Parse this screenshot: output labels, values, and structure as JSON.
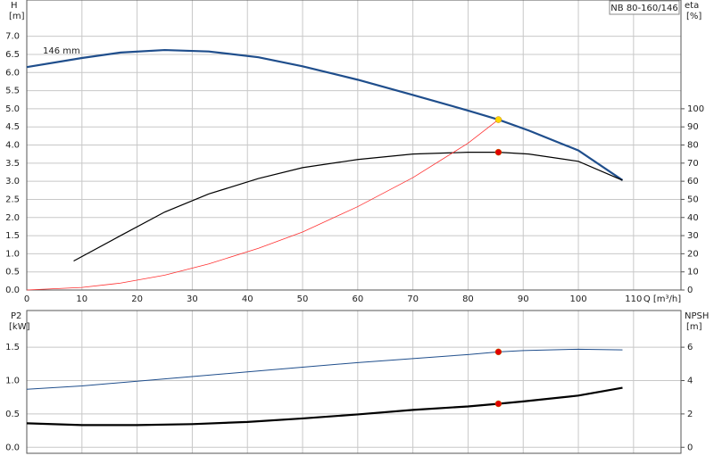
{
  "chart_data": [
    {
      "type": "line",
      "ylabel": "H",
      "yunit": "[m]",
      "y2label": "eta",
      "y2unit": "[%]",
      "xlabel": "Q [m³/h]",
      "title": "NB 80-160/146",
      "xlim": [
        0,
        118.6
      ],
      "xticks": [
        0,
        10,
        20,
        30,
        40,
        50,
        60,
        70,
        80,
        90,
        100,
        110
      ],
      "show_xtick_labels": true,
      "ylim": [
        0,
        8.0
      ],
      "yticks": [
        {
          "value": 0,
          "label": "0.0"
        },
        {
          "value": 0.5,
          "label": "0.5"
        },
        {
          "value": 1,
          "label": "1.0"
        },
        {
          "value": 1.5,
          "label": "1.5"
        },
        {
          "value": 2,
          "label": "2.0"
        },
        {
          "value": 2.5,
          "label": "2.5"
        },
        {
          "value": 3,
          "label": "3.0"
        },
        {
          "value": 3.5,
          "label": "3.5"
        },
        {
          "value": 4,
          "label": "4.0"
        },
        {
          "value": 4.5,
          "label": "4.5"
        },
        {
          "value": 5,
          "label": "5.0"
        },
        {
          "value": 5.5,
          "label": "5.5"
        },
        {
          "value": 6,
          "label": "6.0"
        },
        {
          "value": 6.5,
          "label": "6.5"
        },
        {
          "value": 7,
          "label": "7.0"
        }
      ],
      "y2lim": [
        0,
        160
      ],
      "y2ticks": [
        0,
        10,
        20,
        30,
        40,
        50,
        60,
        70,
        80,
        90,
        100
      ],
      "grid": true,
      "series": [
        {
          "name": "146 mm",
          "color": "#1f4e8c",
          "width": 2.2,
          "x": [
            0,
            10,
            17,
            25,
            33,
            42,
            50,
            60,
            70,
            80,
            85.5,
            91,
            100,
            108
          ],
          "values": [
            6.15,
            6.4,
            6.55,
            6.62,
            6.58,
            6.42,
            6.17,
            5.8,
            5.38,
            4.95,
            4.7,
            4.4,
            3.85,
            3.03
          ]
        },
        {
          "color": "#000000",
          "width": 1.2,
          "axis": "y2",
          "x": [
            8.5,
            17,
            25,
            33,
            42,
            50,
            60,
            70,
            80,
            85.5,
            91,
            100,
            108
          ],
          "values": [
            16,
            30,
            43,
            53,
            61.5,
            67.5,
            72,
            75,
            76,
            76,
            75,
            71,
            60.5
          ]
        },
        {
          "color": "#ff3030",
          "width": 0.8,
          "x": [
            0,
            10,
            17,
            25,
            33,
            42,
            50,
            60,
            70,
            80,
            85.5
          ],
          "values": [
            0,
            0.07,
            0.19,
            0.41,
            0.72,
            1.15,
            1.6,
            2.3,
            3.1,
            4.05,
            4.7
          ]
        }
      ],
      "markers": [
        {
          "x": 85.5,
          "y": 4.7,
          "color": "#ffd700"
        },
        {
          "x": 85.5,
          "y": 76,
          "axis": "y2",
          "color": "#e00000"
        }
      ]
    },
    {
      "type": "line",
      "ylabel": "P2",
      "yunit": "[kW]",
      "y2label": "NPSH",
      "y2unit": "[m]",
      "xlim": [
        0,
        118.6
      ],
      "xticks": [
        0,
        10,
        20,
        30,
        40,
        50,
        60,
        70,
        80,
        90,
        100,
        110
      ],
      "show_xtick_labels": false,
      "ylim": [
        -0.09,
        2.05
      ],
      "yticks": [
        {
          "value": 0,
          "label": "0.0"
        },
        {
          "value": 0.5,
          "label": "0.5"
        },
        {
          "value": 1,
          "label": "1.0"
        },
        {
          "value": 1.5,
          "label": "1.5"
        }
      ],
      "y2lim": [
        -0.36,
        8.2
      ],
      "y2ticks": [
        0,
        2,
        4,
        6
      ],
      "grid": true,
      "series": [
        {
          "color": "#1f4e8c",
          "width": 1,
          "x": [
            0,
            10,
            20,
            30,
            40,
            50,
            60,
            70,
            80,
            85.5,
            90,
            100,
            108
          ],
          "values": [
            0.87,
            0.92,
            0.99,
            1.06,
            1.13,
            1.2,
            1.27,
            1.33,
            1.39,
            1.43,
            1.45,
            1.47,
            1.46
          ]
        },
        {
          "color": "#000000",
          "width": 2.2,
          "axis": "y2",
          "x": [
            0,
            10,
            20,
            30,
            40,
            50,
            60,
            70,
            80,
            85.5,
            90,
            100,
            108
          ],
          "values": [
            1.44,
            1.33,
            1.33,
            1.39,
            1.52,
            1.73,
            1.97,
            2.24,
            2.45,
            2.61,
            2.75,
            3.1,
            3.57
          ]
        }
      ],
      "markers": [
        {
          "x": 85.5,
          "y": 1.43,
          "color": "#e00000"
        },
        {
          "x": 85.5,
          "y": 2.61,
          "axis": "y2",
          "color": "#e00000"
        }
      ]
    }
  ]
}
